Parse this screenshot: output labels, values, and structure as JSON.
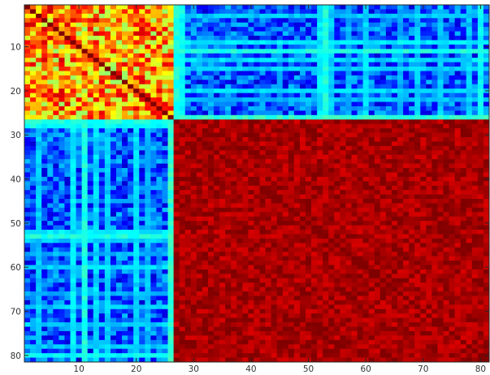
{
  "chart_data": {
    "type": "heatmap",
    "title": "",
    "xlabel": "",
    "ylabel": "",
    "colormap": "jet",
    "color_range": [
      0,
      1
    ],
    "matrix_size": 81,
    "xlim": [
      0.5,
      81.5
    ],
    "ylim": [
      0.5,
      81.5
    ],
    "y_axis_direction": "top-to-bottom",
    "x_ticks": [
      10,
      20,
      30,
      40,
      50,
      60,
      70,
      80
    ],
    "y_ticks": [
      10,
      20,
      30,
      40,
      50,
      60,
      70,
      80
    ],
    "x_tick_labels": [
      "10",
      "20",
      "30",
      "40",
      "50",
      "60",
      "70",
      "80"
    ],
    "y_tick_labels": [
      "10",
      "20",
      "30",
      "40",
      "50",
      "60",
      "70",
      "80"
    ],
    "blocks": [
      {
        "name": "",
        "rows": [
          1,
          26
        ],
        "cols": [
          1,
          26
        ],
        "mean_value": 0.72,
        "variation": 0.2
      },
      {
        "name": "",
        "rows": [
          27,
          81
        ],
        "cols": [
          27,
          81
        ],
        "mean_value": 0.96,
        "variation": 0.05
      },
      {
        "name": "",
        "rows": [
          1,
          26
        ],
        "cols": [
          27,
          81
        ],
        "mean_value": 0.2,
        "variation": 0.12
      },
      {
        "name": "",
        "rows": [
          27,
          81
        ],
        "cols": [
          1,
          26
        ],
        "mean_value": 0.2,
        "variation": 0.12
      }
    ],
    "diagonal_value": 1.0,
    "bright_indices": [
      {
        "index": 3,
        "offblock_value": 0.32
      },
      {
        "index": 9,
        "offblock_value": 0.36
      },
      {
        "index": 11,
        "offblock_value": 0.4
      },
      {
        "index": 13,
        "offblock_value": 0.34
      },
      {
        "index": 15,
        "offblock_value": 0.33
      },
      {
        "index": 20,
        "offblock_value": 0.34
      },
      {
        "index": 22,
        "offblock_value": 0.31
      },
      {
        "index": 26,
        "offblock_value": 0.42
      },
      {
        "index": 27,
        "offblock_value": 0.4
      },
      {
        "index": 28,
        "offblock_value": 0.38
      },
      {
        "index": 52,
        "offblock_value": 0.36
      },
      {
        "index": 53,
        "offblock_value": 0.4
      },
      {
        "index": 54,
        "offblock_value": 0.32
      },
      {
        "index": 57,
        "offblock_value": 0.3
      },
      {
        "index": 60,
        "offblock_value": 0.34
      },
      {
        "index": 66,
        "offblock_value": 0.3
      },
      {
        "index": 69,
        "offblock_value": 0.32
      },
      {
        "index": 73,
        "offblock_value": 0.33
      },
      {
        "index": 78,
        "offblock_value": 0.32
      },
      {
        "index": 80,
        "offblock_value": 0.38
      }
    ],
    "grid": false,
    "legend": "none",
    "colorbar": false
  }
}
